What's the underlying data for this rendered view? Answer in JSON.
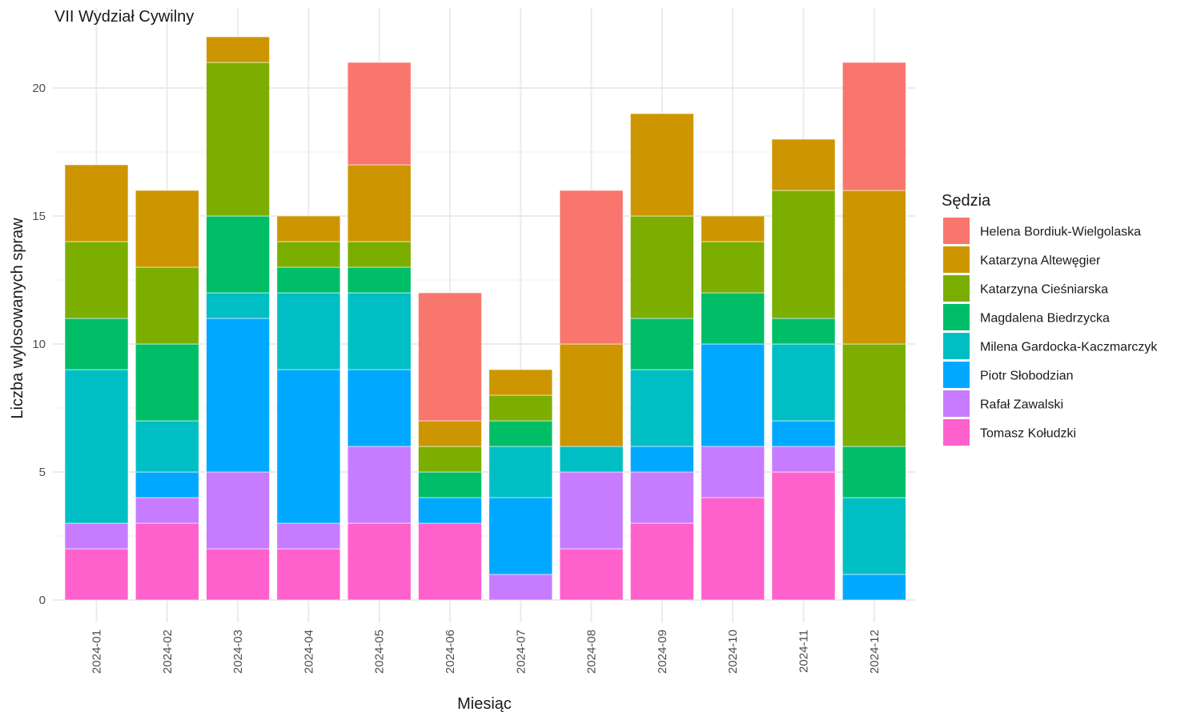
{
  "chart_data": {
    "type": "bar",
    "stacked": true,
    "title": "VII Wydział Cywilny",
    "xlabel": "Miesiąc",
    "ylabel": "Liczba wylosowanych spraw",
    "ylim": [
      0,
      22
    ],
    "y_ticks": [
      0,
      5,
      10,
      15,
      20
    ],
    "grid": true,
    "legend_title": "Sędzia",
    "legend_position": "right",
    "categories": [
      "2024-01",
      "2024-02",
      "2024-03",
      "2024-04",
      "2024-05",
      "2024-06",
      "2024-07",
      "2024-08",
      "2024-09",
      "2024-10",
      "2024-11",
      "2024-12"
    ],
    "series": [
      {
        "name": "Helena Bordiuk-Wielgolaska",
        "color": "#F8766D",
        "values": [
          0,
          0,
          0,
          0,
          4,
          5,
          0,
          6,
          0,
          0,
          0,
          5
        ]
      },
      {
        "name": "Katarzyna Altewęgier",
        "color": "#CD9600",
        "values": [
          3,
          3,
          1,
          1,
          3,
          1,
          1,
          4,
          4,
          1,
          2,
          6
        ]
      },
      {
        "name": "Katarzyna Cieśniarska",
        "color": "#7CAE00",
        "values": [
          3,
          3,
          6,
          1,
          1,
          1,
          1,
          0,
          4,
          2,
          5,
          4
        ]
      },
      {
        "name": "Magdalena Biedrzycka",
        "color": "#00BE67",
        "values": [
          2,
          3,
          3,
          1,
          1,
          1,
          1,
          0,
          2,
          2,
          1,
          2
        ]
      },
      {
        "name": "Milena Gardocka-Kaczmarczyk",
        "color": "#00BFC4",
        "values": [
          6,
          2,
          1,
          3,
          3,
          0,
          2,
          1,
          3,
          0,
          3,
          3
        ]
      },
      {
        "name": "Piotr Słobodzian",
        "color": "#00A9FF",
        "values": [
          0,
          1,
          6,
          6,
          3,
          1,
          3,
          0,
          1,
          4,
          1,
          1
        ]
      },
      {
        "name": "Rafał Zawalski",
        "color": "#C77CFF",
        "values": [
          1,
          1,
          3,
          1,
          3,
          0,
          1,
          3,
          2,
          2,
          1,
          0
        ]
      },
      {
        "name": "Tomasz Kołudzki",
        "color": "#FF61CC",
        "values": [
          2,
          3,
          2,
          2,
          3,
          3,
          0,
          2,
          3,
          4,
          5,
          0
        ]
      }
    ]
  }
}
